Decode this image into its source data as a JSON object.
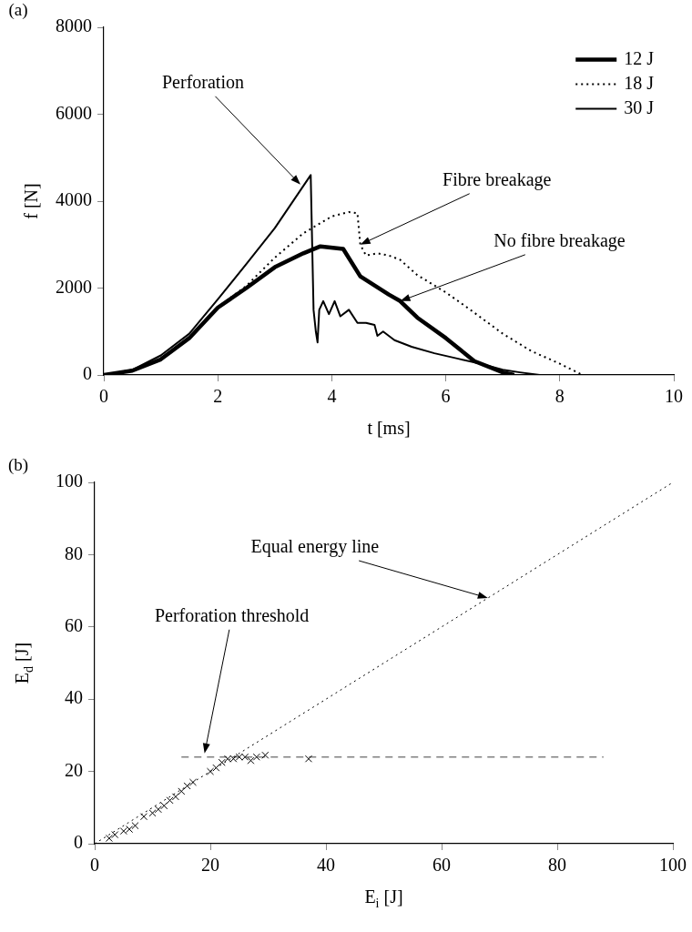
{
  "chart_data": [
    {
      "type": "line",
      "title": "(a)",
      "xlabel": "t [ms]",
      "ylabel": "f [N]",
      "xlim": [
        0,
        10
      ],
      "xticks": [
        0,
        2,
        4,
        6,
        8,
        10
      ],
      "ylim": [
        0,
        8000
      ],
      "yticks": [
        0,
        2000,
        4000,
        6000,
        8000
      ],
      "grid": false,
      "legend": "top right",
      "series": [
        {
          "name": "12 J",
          "color": "#000000",
          "line_style": "solid",
          "x": [
            0,
            0.5,
            1,
            1.5,
            2,
            2.5,
            3,
            3.5,
            3.8,
            4.2,
            4.5,
            5,
            5.2,
            5.5,
            6,
            6.5,
            7,
            7.2
          ],
          "values": [
            0,
            100,
            360,
            850,
            1550,
            2000,
            2480,
            2800,
            2960,
            2900,
            2270,
            1850,
            1700,
            1320,
            850,
            320,
            60,
            0
          ]
        },
        {
          "name": "18 J",
          "color": "#000000",
          "line_style": "dotted",
          "x": [
            0,
            0.5,
            1,
            1.5,
            2,
            2.5,
            3,
            3.5,
            4,
            4.3,
            4.45,
            4.5,
            4.6,
            4.8,
            5,
            5.2,
            5.5,
            6,
            6.4,
            7,
            7.2,
            7.5,
            8,
            8.4
          ],
          "values": [
            0,
            100,
            380,
            860,
            1560,
            2050,
            2700,
            3260,
            3650,
            3750,
            3720,
            3000,
            2750,
            2800,
            2750,
            2650,
            2300,
            1900,
            1530,
            950,
            790,
            550,
            260,
            0
          ]
        },
        {
          "name": "30 J",
          "color": "#000000",
          "line_style": "solid",
          "x": [
            0,
            0.5,
            1,
            1.5,
            2,
            2.5,
            3,
            3.63,
            3.68,
            3.72,
            3.75,
            3.78,
            3.85,
            3.95,
            4.05,
            4.15,
            4.3,
            4.45,
            4.6,
            4.75,
            4.8,
            4.9,
            5.1,
            5.4,
            5.8,
            6.2,
            6.6,
            7,
            7.3,
            7.65
          ],
          "values": [
            0,
            120,
            450,
            950,
            1740,
            2550,
            3380,
            4600,
            1500,
            1000,
            750,
            1500,
            1700,
            1400,
            1700,
            1350,
            1500,
            1200,
            1200,
            1150,
            900,
            1000,
            800,
            650,
            500,
            380,
            260,
            120,
            60,
            0
          ]
        }
      ],
      "annotations": [
        {
          "text": "Perforation",
          "x": 3.45,
          "y": 4380
        },
        {
          "text": "Fibre breakage",
          "x": 4.5,
          "y": 3000
        },
        {
          "text": "No fibre breakage",
          "x": 5.2,
          "y": 1700
        }
      ]
    },
    {
      "type": "scatter",
      "title": "(b)",
      "xlabel": "E$_{i}$ [J]",
      "ylabel": "E$_{d}$ [J]",
      "xlim": [
        0,
        100
      ],
      "xticks": [
        0,
        20,
        40,
        60,
        80,
        100
      ],
      "ylim": [
        0,
        100
      ],
      "yticks": [
        0,
        20,
        40,
        60,
        80,
        100
      ],
      "grid": false,
      "series": [
        {
          "type": "scatter",
          "color": "#000000",
          "marker": "cross",
          "x": [
            2.5,
            3.5,
            5,
            6,
            7,
            8.5,
            10,
            11,
            12,
            13,
            14,
            15,
            16,
            17,
            20,
            21,
            22,
            23,
            24,
            25,
            26,
            27,
            28,
            29.5,
            37
          ],
          "values": [
            1.5,
            2.5,
            3.5,
            4,
            5,
            7.5,
            8.5,
            9.5,
            10.5,
            12,
            13,
            14.5,
            16,
            17,
            20,
            21,
            22.5,
            23.5,
            23.5,
            24,
            24,
            23,
            24,
            24.5,
            23.5
          ]
        },
        {
          "type": "line",
          "color": "#000000",
          "line_style": "dotted",
          "x": [
            0,
            100
          ],
          "values": [
            0,
            100
          ]
        },
        {
          "type": "line",
          "color": "#808080",
          "line_style": "dashed",
          "x": [
            15,
            88
          ],
          "values": [
            24,
            24
          ]
        }
      ],
      "annotations": [
        {
          "text": "Equal energy line",
          "x": 68,
          "y": 68
        },
        {
          "text": "Perforation threshold",
          "x": 19,
          "y": 25
        }
      ]
    }
  ]
}
